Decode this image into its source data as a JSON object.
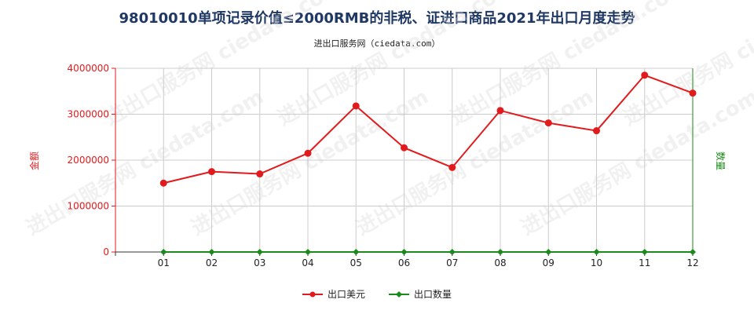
{
  "title": "98010010单项记录价值≤2000RMB的非税、证进口商品2021年出口月度走势",
  "subtitle": "进出口服务网（ciedata.com）",
  "watermark": "进出口服务网 ciedata.com",
  "chart_data": {
    "type": "line",
    "categories": [
      "01",
      "02",
      "03",
      "04",
      "05",
      "06",
      "07",
      "08",
      "09",
      "10",
      "11",
      "12"
    ],
    "series": [
      {
        "name": "出口美元",
        "axis": "left",
        "color": "#e31a1c",
        "values": [
          1500000,
          1750000,
          1700000,
          2150000,
          3180000,
          2270000,
          1840000,
          3080000,
          2810000,
          2640000,
          3850000,
          3460000
        ]
      },
      {
        "name": "出口数量",
        "axis": "right",
        "color": "#1a8a1a",
        "values": [
          0,
          0,
          0,
          0,
          0,
          0,
          0,
          0,
          0,
          0,
          0,
          0
        ]
      }
    ],
    "ylabel_left": "金额",
    "ylabel_right": "数量",
    "ylim_left": [
      0,
      4000000
    ],
    "yticks_left": [
      "0",
      "1000000",
      "2000000",
      "3000000",
      "4000000"
    ],
    "yticks_left_values": [
      0,
      1000000,
      2000000,
      3000000,
      4000000
    ],
    "grid": true,
    "legend_position": "bottom-center"
  }
}
